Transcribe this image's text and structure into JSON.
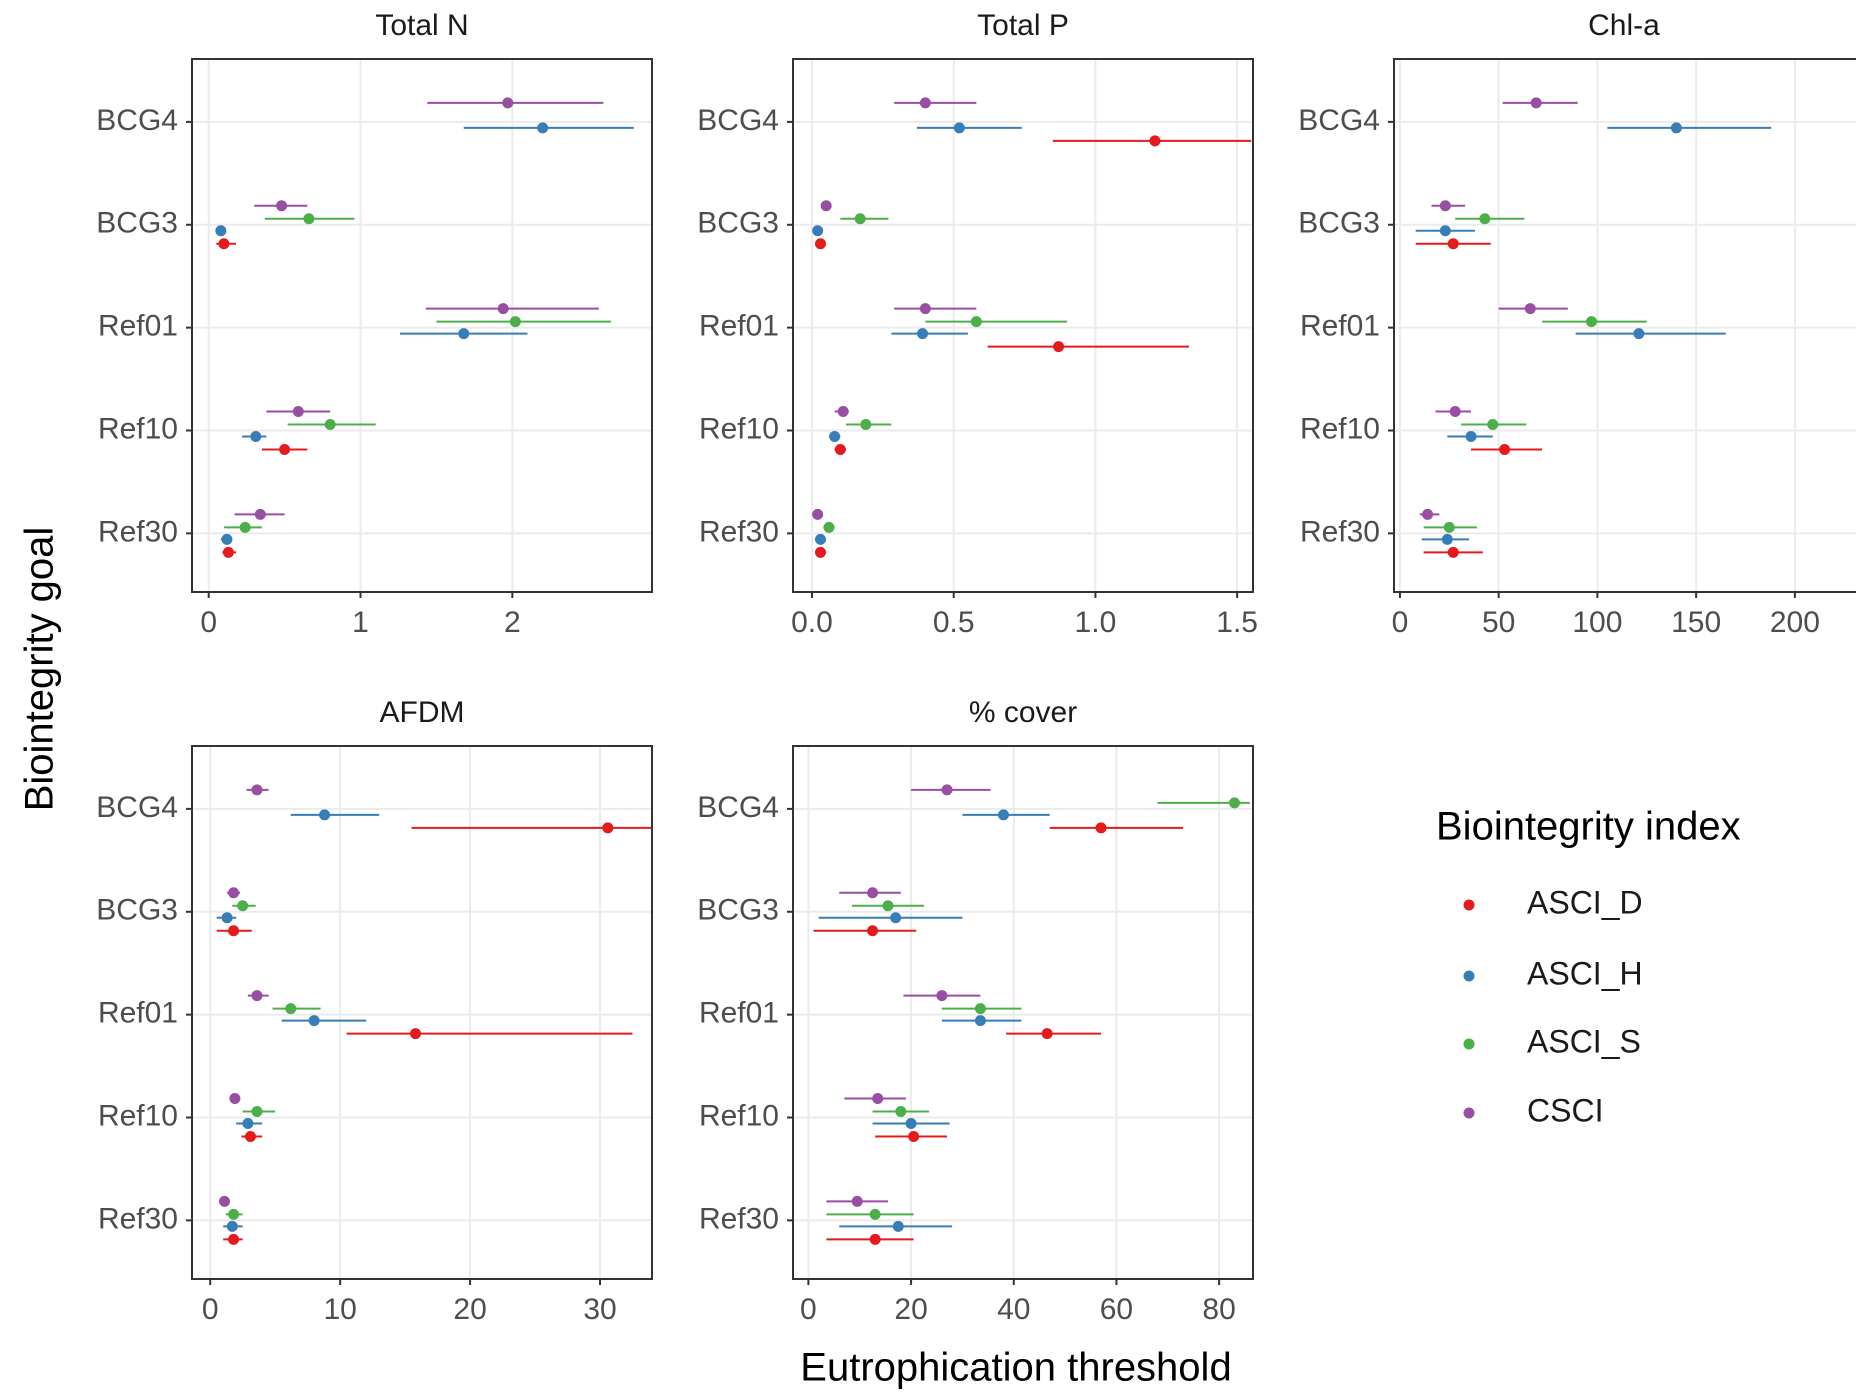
{
  "ylabel": "Biointegrity goal",
  "xlabel": "Eutrophication threshold",
  "legend_title": "Biointegrity index",
  "chart_data": [
    {
      "type": "pointrange",
      "title": "Total N",
      "categories": [
        "BCG4",
        "BCG3",
        "Ref01",
        "Ref10",
        "Ref30"
      ],
      "xlim": [
        -0.11,
        2.92
      ],
      "xticks": [
        0,
        1,
        2
      ],
      "grid": true,
      "series": [
        {
          "name": "ASCI_D",
          "color": "#e41a1c",
          "values": [
            null,
            0.1,
            null,
            0.5,
            0.13
          ],
          "lows": [
            null,
            0.05,
            null,
            0.35,
            0.09
          ],
          "highs": [
            null,
            0.18,
            null,
            0.65,
            0.18
          ]
        },
        {
          "name": "ASCI_H",
          "color": "#377eb8",
          "values": [
            2.2,
            0.08,
            1.68,
            0.31,
            0.12
          ],
          "lows": [
            1.68,
            0.05,
            1.26,
            0.22,
            0.08
          ],
          "highs": [
            2.8,
            0.11,
            2.1,
            0.38,
            0.15
          ]
        },
        {
          "name": "ASCI_S",
          "color": "#4daf4a",
          "values": [
            null,
            0.66,
            2.02,
            0.8,
            0.24
          ],
          "lows": [
            null,
            0.37,
            1.5,
            0.52,
            0.1
          ],
          "highs": [
            null,
            0.96,
            2.65,
            1.1,
            0.35
          ]
        },
        {
          "name": "CSCI",
          "color": "#984ea3",
          "values": [
            1.97,
            0.48,
            1.94,
            0.59,
            0.34
          ],
          "lows": [
            1.44,
            0.3,
            1.43,
            0.38,
            0.17
          ],
          "highs": [
            2.6,
            0.65,
            2.57,
            0.8,
            0.5
          ]
        }
      ]
    },
    {
      "type": "pointrange",
      "title": "Total P",
      "categories": [
        "BCG4",
        "BCG3",
        "Ref01",
        "Ref10",
        "Ref30"
      ],
      "xlim": [
        -0.067,
        1.556
      ],
      "xticks": [
        {
          "value": 0,
          "label": "0.0"
        },
        0.5,
        {
          "value": 1,
          "label": "1.0"
        },
        1.5
      ],
      "grid": true,
      "series": [
        {
          "name": "ASCI_D",
          "color": "#e41a1c",
          "values": [
            1.21,
            0.03,
            0.87,
            0.1,
            0.03
          ],
          "lows": [
            0.85,
            0.02,
            0.62,
            0.08,
            0.02
          ],
          "highs": [
            1.55,
            0.04,
            1.33,
            0.12,
            0.04
          ]
        },
        {
          "name": "ASCI_H",
          "color": "#377eb8",
          "values": [
            0.52,
            0.02,
            0.39,
            0.08,
            0.03
          ],
          "lows": [
            0.37,
            0.01,
            0.28,
            0.06,
            0.02
          ],
          "highs": [
            0.74,
            0.03,
            0.55,
            0.1,
            0.04
          ]
        },
        {
          "name": "ASCI_S",
          "color": "#4daf4a",
          "values": [
            null,
            0.17,
            0.58,
            0.19,
            0.06
          ],
          "lows": [
            null,
            0.1,
            0.4,
            0.12,
            0.04
          ],
          "highs": [
            null,
            0.27,
            0.9,
            0.28,
            0.08
          ]
        },
        {
          "name": "CSCI",
          "color": "#984ea3",
          "values": [
            0.4,
            0.05,
            0.4,
            0.11,
            0.02
          ],
          "lows": [
            0.29,
            0.04,
            0.29,
            0.08,
            0.01
          ],
          "highs": [
            0.58,
            0.06,
            0.58,
            0.13,
            0.03
          ]
        }
      ]
    },
    {
      "type": "pointrange",
      "title": "Chl-a",
      "categories": [
        "BCG4",
        "BCG3",
        "Ref01",
        "Ref10",
        "Ref30"
      ],
      "xlim": [
        -3,
        235
      ],
      "xticks": [
        0,
        50,
        100,
        150,
        200
      ],
      "grid": true,
      "series": [
        {
          "name": "ASCI_D",
          "color": "#e41a1c",
          "values": [
            null,
            27,
            null,
            53,
            27
          ],
          "lows": [
            null,
            8,
            null,
            36,
            12
          ],
          "highs": [
            null,
            46,
            null,
            72,
            42
          ]
        },
        {
          "name": "ASCI_H",
          "color": "#377eb8",
          "values": [
            140,
            23,
            121,
            36,
            24
          ],
          "lows": [
            105,
            8,
            89,
            24,
            11
          ],
          "highs": [
            188,
            38,
            165,
            47,
            35
          ]
        },
        {
          "name": "ASCI_S",
          "color": "#4daf4a",
          "values": [
            null,
            43,
            97,
            47,
            25
          ],
          "lows": [
            null,
            28,
            72,
            31,
            12
          ],
          "highs": [
            null,
            63,
            125,
            64,
            39
          ]
        },
        {
          "name": "CSCI",
          "color": "#984ea3",
          "values": [
            69,
            23,
            66,
            28,
            14
          ],
          "lows": [
            52,
            16,
            50,
            18,
            10
          ],
          "highs": [
            90,
            33,
            85,
            36,
            20
          ]
        }
      ]
    },
    {
      "type": "pointrange",
      "title": "AFDM",
      "categories": [
        "BCG4",
        "BCG3",
        "Ref01",
        "Ref10",
        "Ref30"
      ],
      "xlim": [
        -1.4,
        34
      ],
      "xticks": [
        0,
        10,
        20,
        30
      ],
      "grid": true,
      "series": [
        {
          "name": "ASCI_D",
          "color": "#e41a1c",
          "values": [
            30.6,
            1.8,
            15.8,
            3.1,
            1.8
          ],
          "lows": [
            15.5,
            0.5,
            10.5,
            2.4,
            1
          ],
          "highs": [
            34,
            3.2,
            32.5,
            4,
            2.5
          ]
        },
        {
          "name": "ASCI_H",
          "color": "#377eb8",
          "values": [
            8.8,
            1.3,
            8,
            2.9,
            1.7
          ],
          "lows": [
            6.2,
            0.5,
            5.5,
            2,
            1
          ],
          "highs": [
            13,
            2,
            12,
            4,
            2.5
          ]
        },
        {
          "name": "ASCI_S",
          "color": "#4daf4a",
          "values": [
            null,
            2.5,
            6.2,
            3.6,
            1.8
          ],
          "lows": [
            null,
            1.7,
            4.8,
            2.5,
            1.2
          ],
          "highs": [
            null,
            3.5,
            8.5,
            5,
            2.5
          ]
        },
        {
          "name": "CSCI",
          "color": "#984ea3",
          "values": [
            3.6,
            1.8,
            3.6,
            1.9,
            1.1
          ],
          "lows": [
            2.8,
            1.3,
            2.9,
            1.5,
            0.8
          ],
          "highs": [
            4.5,
            2.3,
            4.5,
            2.3,
            1.4
          ]
        }
      ]
    },
    {
      "type": "pointrange",
      "title": "% cover",
      "categories": [
        "BCG4",
        "BCG3",
        "Ref01",
        "Ref10",
        "Ref30"
      ],
      "xlim": [
        -3,
        86.6
      ],
      "xticks": [
        0,
        20,
        40,
        60,
        80
      ],
      "grid": true,
      "series": [
        {
          "name": "ASCI_D",
          "color": "#e41a1c",
          "values": [
            57,
            12.5,
            46.5,
            20.5,
            13
          ],
          "lows": [
            47,
            1,
            38.5,
            13,
            3.5
          ],
          "highs": [
            73,
            21,
            57,
            27,
            20.5
          ]
        },
        {
          "name": "ASCI_H",
          "color": "#377eb8",
          "values": [
            38,
            17,
            33.5,
            20,
            17.5
          ],
          "lows": [
            30,
            2,
            26,
            12.5,
            6
          ],
          "highs": [
            47,
            30,
            41.5,
            27.5,
            28
          ]
        },
        {
          "name": "ASCI_S",
          "color": "#4daf4a",
          "values": [
            83,
            15.5,
            33.5,
            18,
            13
          ],
          "lows": [
            68,
            8.5,
            26,
            12.5,
            3.5
          ],
          "highs": [
            86,
            22.5,
            41.5,
            23.5,
            20.5
          ]
        },
        {
          "name": "CSCI",
          "color": "#984ea3",
          "values": [
            27,
            12.5,
            26,
            13.5,
            9.5
          ],
          "lows": [
            20,
            6,
            18.5,
            7,
            3.5
          ],
          "highs": [
            35.5,
            18,
            33.5,
            19,
            15.5
          ]
        }
      ]
    }
  ]
}
